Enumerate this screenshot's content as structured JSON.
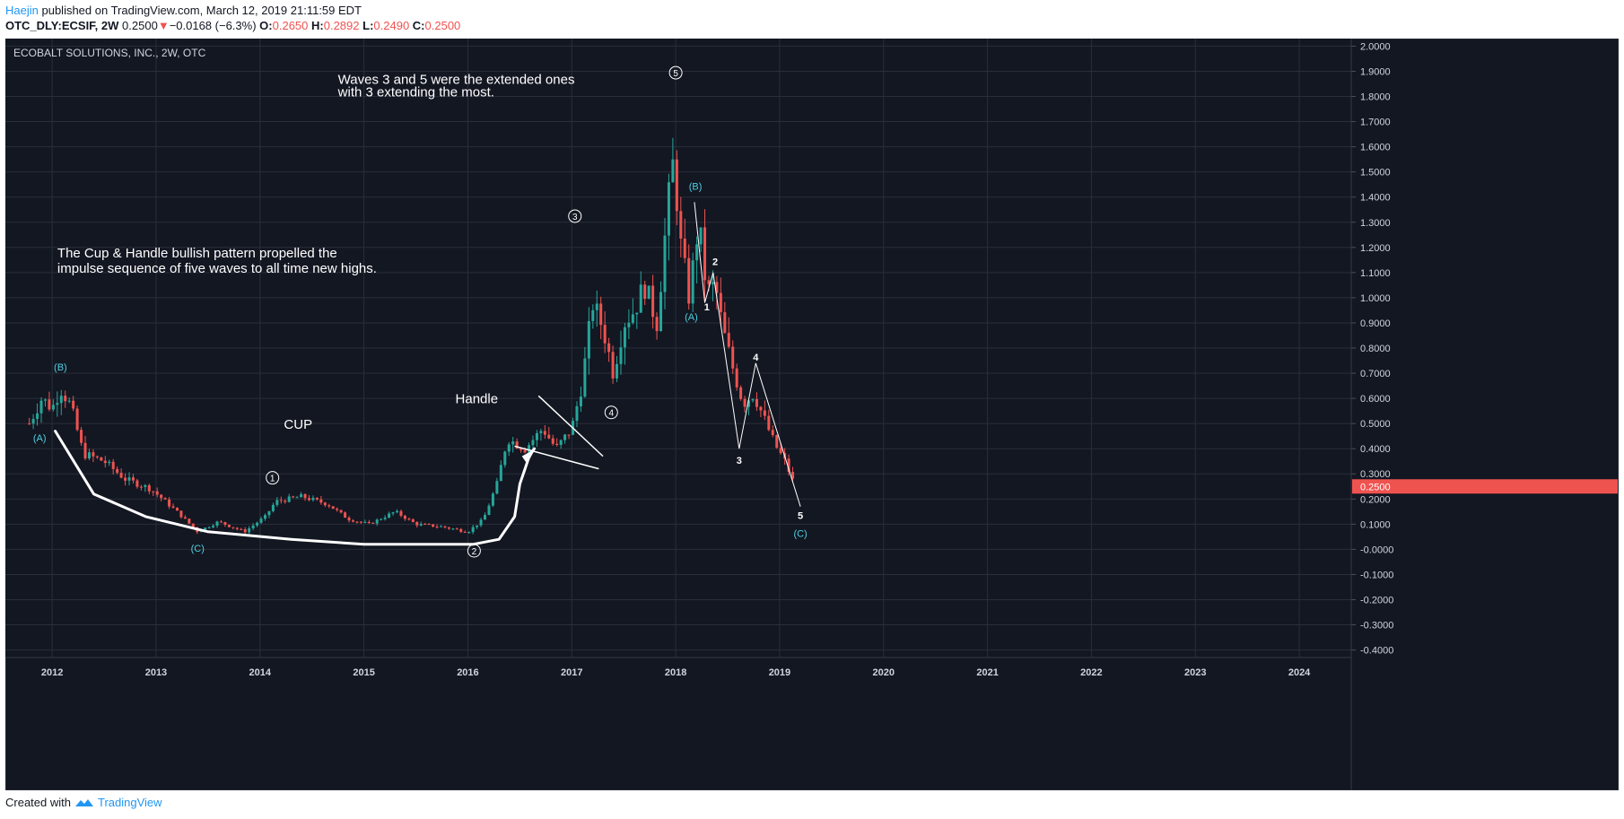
{
  "header": {
    "user": "Haejin",
    "published_text": "published on TradingView.com, March 12, 2019 21:11:59 EDT"
  },
  "quote": {
    "symbol": "OTC_DLY:ECSIF, 2W",
    "last": "0.2500",
    "change_arrow": "▼",
    "change": "−0.0168 (−6.3%)",
    "o_label": "O:",
    "o_value": "0.2650",
    "h_label": "H:",
    "h_value": "0.2892",
    "l_label": "L:",
    "l_value": "0.2490",
    "c_label": "C:",
    "c_value": "0.2500"
  },
  "footer": {
    "created_with": "Created with",
    "brand": "TradingView"
  },
  "chart_data": {
    "type": "candlestick",
    "title": "ECOBALT SOLUTIONS, INC., 2W, OTC",
    "xlabel": "",
    "ylabel": "",
    "xlim": [
      2011.55,
      2024.5
    ],
    "ylim": [
      -0.43,
      2.03
    ],
    "grid": true,
    "colors": {
      "background": "#131722",
      "grid": "#2a2e39",
      "up": "#26a69a",
      "down": "#ef5350",
      "axis_text": "#d1d4dc",
      "wave_label": "#4dd0e1",
      "annotation": "#ffffff",
      "price_tag": "#ef5350"
    },
    "x_ticks": [
      "2012",
      "2013",
      "2014",
      "2015",
      "2016",
      "2017",
      "2018",
      "2019",
      "2020",
      "2021",
      "2022",
      "2023",
      "2024"
    ],
    "y_ticks": [
      "2.0000",
      "1.9000",
      "1.8000",
      "1.7000",
      "1.6000",
      "1.5000",
      "1.4000",
      "1.3000",
      "1.2000",
      "1.1000",
      "1.0000",
      "0.9000",
      "0.8000",
      "0.7000",
      "0.6000",
      "0.5000",
      "0.4000",
      "0.3000",
      "0.2000",
      "0.1000",
      "-0.0000",
      "-0.1000",
      "-0.2000",
      "-0.3000",
      "-0.4000"
    ],
    "last_price": "0.2500",
    "last_price_value": 0.25,
    "price_path": [
      [
        2011.78,
        0.5
      ],
      [
        2011.9,
        0.6
      ],
      [
        2012.0,
        0.56
      ],
      [
        2012.08,
        0.64
      ],
      [
        2012.18,
        0.57
      ],
      [
        2012.3,
        0.38
      ],
      [
        2012.5,
        0.35
      ],
      [
        2012.7,
        0.28
      ],
      [
        2012.95,
        0.24
      ],
      [
        2013.2,
        0.15
      ],
      [
        2013.4,
        0.07
      ],
      [
        2013.6,
        0.11
      ],
      [
        2013.85,
        0.07
      ],
      [
        2014.05,
        0.13
      ],
      [
        2014.15,
        0.19
      ],
      [
        2014.4,
        0.21
      ],
      [
        2014.65,
        0.18
      ],
      [
        2014.85,
        0.12
      ],
      [
        2015.05,
        0.1
      ],
      [
        2015.3,
        0.15
      ],
      [
        2015.5,
        0.1
      ],
      [
        2015.75,
        0.09
      ],
      [
        2016.0,
        0.07
      ],
      [
        2016.15,
        0.12
      ],
      [
        2016.28,
        0.26
      ],
      [
        2016.38,
        0.44
      ],
      [
        2016.55,
        0.4
      ],
      [
        2016.72,
        0.48
      ],
      [
        2016.85,
        0.4
      ],
      [
        2017.0,
        0.48
      ],
      [
        2017.1,
        0.66
      ],
      [
        2017.2,
        0.98
      ],
      [
        2017.3,
        0.88
      ],
      [
        2017.4,
        0.7
      ],
      [
        2017.5,
        0.9
      ],
      [
        2017.6,
        0.95
      ],
      [
        2017.7,
        1.05
      ],
      [
        2017.82,
        0.9
      ],
      [
        2017.92,
        1.35
      ],
      [
        2017.98,
        1.55
      ],
      [
        2018.05,
        1.2
      ],
      [
        2018.13,
        1.0
      ],
      [
        2018.22,
        1.3
      ],
      [
        2018.3,
        1.02
      ],
      [
        2018.38,
        1.05
      ],
      [
        2018.45,
        0.88
      ],
      [
        2018.55,
        0.72
      ],
      [
        2018.65,
        0.58
      ],
      [
        2018.75,
        0.62
      ],
      [
        2018.85,
        0.52
      ],
      [
        2018.95,
        0.42
      ],
      [
        2019.05,
        0.35
      ],
      [
        2019.15,
        0.25
      ]
    ],
    "annotations": {
      "cup": "CUP",
      "handle": "Handle",
      "cup_handle_text_line1": "The Cup & Handle bullish pattern propelled the",
      "cup_handle_text_line2": "impulse sequence of five waves to all time new highs.",
      "waves_text_line1": "Waves 3 and 5 were the extended ones",
      "waves_text_line2": "with 3 extending the most."
    },
    "wave_labels": [
      {
        "label": "(A)",
        "x": 2011.88,
        "y": 0.43,
        "kind": "abc"
      },
      {
        "label": "(B)",
        "x": 2012.08,
        "y": 0.71,
        "kind": "abc"
      },
      {
        "label": "(C)",
        "x": 2013.4,
        "y": -0.01,
        "kind": "abc"
      },
      {
        "label": "1",
        "x": 2014.12,
        "y": 0.27,
        "kind": "circle"
      },
      {
        "label": "2",
        "x": 2016.06,
        "y": -0.02,
        "kind": "circle"
      },
      {
        "label": "3",
        "x": 2017.03,
        "y": 1.31,
        "kind": "circle"
      },
      {
        "label": "4",
        "x": 2017.38,
        "y": 0.53,
        "kind": "circle"
      },
      {
        "label": "5",
        "x": 2018.0,
        "y": 1.88,
        "kind": "circle"
      },
      {
        "label": "(A)",
        "x": 2018.15,
        "y": 0.91,
        "kind": "abc"
      },
      {
        "label": "(B)",
        "x": 2018.19,
        "y": 1.43,
        "kind": "abc"
      },
      {
        "label": "1",
        "x": 2018.3,
        "y": 0.95,
        "kind": "plain"
      },
      {
        "label": "2",
        "x": 2018.38,
        "y": 1.13,
        "kind": "plain"
      },
      {
        "label": "3",
        "x": 2018.61,
        "y": 0.34,
        "kind": "plain"
      },
      {
        "label": "4",
        "x": 2018.77,
        "y": 0.75,
        "kind": "plain"
      },
      {
        "label": "5",
        "x": 2019.2,
        "y": 0.12,
        "kind": "plain"
      },
      {
        "label": "(C)",
        "x": 2019.2,
        "y": 0.05,
        "kind": "abc"
      }
    ]
  }
}
